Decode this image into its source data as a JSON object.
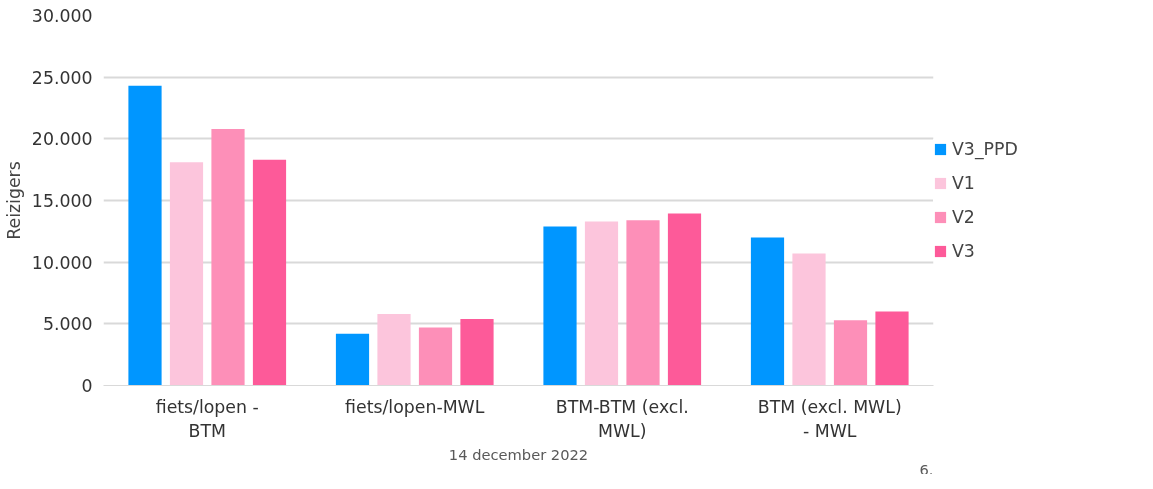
{
  "chart_data": {
    "type": "bar",
    "ylabel": "Reizigers",
    "categories": [
      "fiets/lopen - BTM",
      "fiets/lopen-MWL",
      "BTM-BTM (excl. MWL)",
      "BTM (excl. MWL) - MWL"
    ],
    "series": [
      {
        "name": "V3_PPD",
        "color": "#0096ff",
        "values": [
          24300,
          4200,
          12900,
          12000
        ]
      },
      {
        "name": "V1",
        "color": "#fcc5dc",
        "values": [
          18100,
          5800,
          13300,
          10700
        ]
      },
      {
        "name": "V2",
        "color": "#fd8fb8",
        "values": [
          20800,
          4700,
          13400,
          5300
        ]
      },
      {
        "name": "V3",
        "color": "#fd5a99",
        "values": [
          18300,
          5400,
          13950,
          6000
        ]
      }
    ],
    "ylim": [
      0,
      30000
    ],
    "yticks": [
      {
        "value": 0,
        "label": "0"
      },
      {
        "value": 5000,
        "label": "5.000"
      },
      {
        "value": 10000,
        "label": "10.000"
      },
      {
        "value": 15000,
        "label": "15.000"
      },
      {
        "value": 20000,
        "label": "20.000"
      },
      {
        "value": 25000,
        "label": "25.000"
      },
      {
        "value": 30000,
        "label": "30.000"
      }
    ],
    "grid": "y",
    "legend": "right",
    "annotations": [
      "14 december 2022",
      "6."
    ]
  }
}
